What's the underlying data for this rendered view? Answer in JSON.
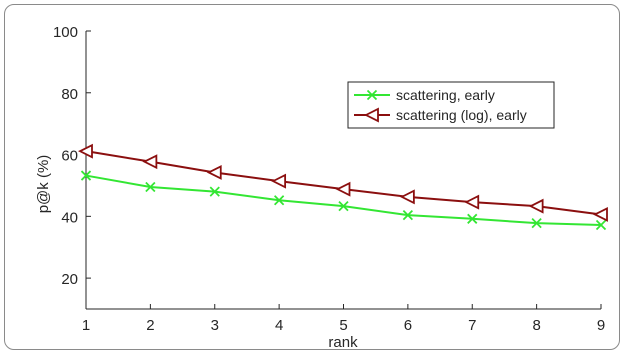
{
  "chart_data": {
    "type": "line",
    "title": "",
    "xlabel": "rank",
    "ylabel": "p@k (%)",
    "x": [
      1,
      2,
      3,
      4,
      5,
      6,
      7,
      8,
      9
    ],
    "xlim": [
      1,
      9
    ],
    "ylim": [
      10,
      100
    ],
    "yticks": [
      20,
      40,
      60,
      80,
      100
    ],
    "xticks": [
      1,
      2,
      3,
      4,
      5,
      6,
      7,
      8,
      9
    ],
    "grid": false,
    "legend_position": "top-right",
    "series": [
      {
        "name": "scattering, early",
        "color": "#33e633",
        "marker": "x-mark",
        "values": [
          53.2,
          49.5,
          48.0,
          45.2,
          43.3,
          40.4,
          39.2,
          37.8,
          37.2
        ]
      },
      {
        "name": "scattering (log), early",
        "color": "#8b0f0f",
        "marker": "left-triangle",
        "values": [
          61.1,
          57.7,
          54.2,
          51.4,
          48.8,
          46.3,
          44.6,
          43.3,
          40.6
        ]
      }
    ]
  }
}
